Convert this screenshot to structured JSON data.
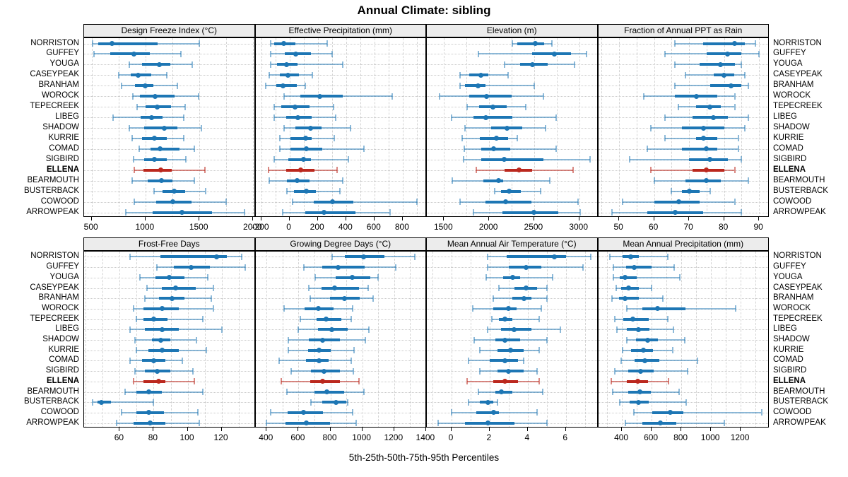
{
  "title": "Annual Climate: sibling",
  "caption": "5th-25th-50th-75th-95th Percentiles",
  "stations": [
    "NORRISTON",
    "GUFFEY",
    "YOUGA",
    "CASEYPEAK",
    "BRANHAM",
    "WOROCK",
    "TEPECREEK",
    "LIBEG",
    "SHADOW",
    "KURRIE",
    "COMAD",
    "SIGBIRD",
    "ELLENA",
    "BEARMOUTH",
    "BUSTERBACK",
    "COWOOD",
    "ARROWPEAK"
  ],
  "highlight_station": "ELLENA",
  "colors": {
    "series": "#1d76b4",
    "series_light": "rgba(29,118,180,0.5)",
    "highlight": "#bb281e",
    "highlight_light": "rgba(187,40,30,0.55)",
    "strip_bg": "#ececec",
    "panel_border": "#000000",
    "grid": "#c9c9c9"
  },
  "chart_data": {
    "type": "percentile-dotplot",
    "percentiles": [
      5,
      25,
      50,
      75,
      95
    ],
    "grid": "on",
    "panels": [
      {
        "title": "Design Freeze Index (°C)",
        "xlim": [
          430,
          2020
        ],
        "ticks": [
          500,
          1000,
          1500,
          2000
        ],
        "grid_step": 250,
        "values": [
          [
            510,
            560,
            690,
            1110,
            1500
          ],
          [
            520,
            670,
            890,
            1040,
            1330
          ],
          [
            850,
            970,
            1130,
            1230,
            1430
          ],
          [
            750,
            865,
            930,
            1055,
            1200
          ],
          [
            775,
            900,
            995,
            1075,
            1295
          ],
          [
            880,
            950,
            1090,
            1270,
            1490
          ],
          [
            920,
            1000,
            1110,
            1240,
            1370
          ],
          [
            700,
            955,
            1055,
            1155,
            1355
          ],
          [
            850,
            990,
            1175,
            1295,
            1515
          ],
          [
            875,
            965,
            1085,
            1195,
            1355
          ],
          [
            940,
            1045,
            1135,
            1315,
            1450
          ],
          [
            890,
            990,
            1085,
            1195,
            1375
          ],
          [
            895,
            980,
            1140,
            1240,
            1550
          ],
          [
            875,
            1020,
            1150,
            1250,
            1450
          ],
          [
            1080,
            1155,
            1265,
            1370,
            1555
          ],
          [
            895,
            1100,
            1250,
            1425,
            1745
          ],
          [
            815,
            1065,
            1335,
            1615,
            1920
          ]
        ]
      },
      {
        "title": "Effective Precipitation (mm)",
        "xlim": [
          -240,
          970
        ],
        "ticks": [
          -200,
          0,
          200,
          400,
          600,
          800
        ],
        "grid_step": 100,
        "values": [
          [
            -135,
            -110,
            -40,
            40,
            265
          ],
          [
            -135,
            -33,
            42,
            150,
            303
          ],
          [
            -133,
            -90,
            -22,
            58,
            375
          ],
          [
            -142,
            -67,
            -13,
            67,
            163
          ],
          [
            -170,
            -92,
            -45,
            50,
            113
          ],
          [
            -37,
            75,
            213,
            375,
            725
          ],
          [
            -108,
            -58,
            38,
            142,
            313
          ],
          [
            -108,
            -25,
            58,
            158,
            325
          ],
          [
            -37,
            42,
            147,
            225,
            433
          ],
          [
            -67,
            8,
            113,
            158,
            317
          ],
          [
            -70,
            8,
            117,
            233,
            525
          ],
          [
            -108,
            -8,
            97,
            150,
            417
          ],
          [
            -147,
            -25,
            80,
            175,
            338
          ],
          [
            -142,
            -20,
            55,
            142,
            375
          ],
          [
            -20,
            33,
            117,
            187,
            358
          ],
          [
            20,
            170,
            303,
            453,
            900
          ],
          [
            -50,
            113,
            242,
            467,
            708
          ]
        ]
      },
      {
        "title": "Elevation (m)",
        "xlim": [
          1310,
          3210
        ],
        "ticks": [
          1500,
          2000,
          2500,
          3000
        ],
        "grid_step": 250,
        "values": [
          [
            2260,
            2310,
            2510,
            2610,
            2700
          ],
          [
            1885,
            2480,
            2725,
            2910,
            3080
          ],
          [
            2175,
            2340,
            2480,
            2650,
            2945
          ],
          [
            1680,
            1780,
            1910,
            1990,
            2210
          ],
          [
            1675,
            1730,
            1875,
            1960,
            2500
          ],
          [
            1450,
            1780,
            1970,
            2250,
            2600
          ],
          [
            1760,
            1890,
            2045,
            2195,
            2410
          ],
          [
            1580,
            1830,
            1960,
            2260,
            2740
          ],
          [
            1735,
            2025,
            2195,
            2365,
            2625
          ],
          [
            1700,
            1895,
            2080,
            2210,
            2310
          ],
          [
            1725,
            1910,
            2050,
            2235,
            2740
          ],
          [
            1720,
            1910,
            2170,
            2600,
            3120
          ],
          [
            1855,
            2170,
            2335,
            2480,
            2930
          ],
          [
            1595,
            1935,
            2105,
            2160,
            2675
          ],
          [
            2065,
            2130,
            2220,
            2350,
            2570
          ],
          [
            1680,
            1960,
            2185,
            2470,
            2990
          ],
          [
            1825,
            2150,
            2500,
            2770,
            3010
          ]
        ]
      },
      {
        "title": "Fraction of Annual PPT as Rain",
        "xlim": [
          44,
          93
        ],
        "ticks": [
          50,
          60,
          70,
          80,
          90
        ],
        "grid_step": 5,
        "values": [
          [
            66,
            74,
            83,
            86,
            89
          ],
          [
            63,
            75,
            81,
            85,
            90
          ],
          [
            66,
            73,
            79,
            83,
            85
          ],
          [
            69,
            77,
            80,
            83,
            86
          ],
          [
            66,
            76,
            82,
            85,
            87
          ],
          [
            57,
            66,
            72,
            78,
            83
          ],
          [
            67,
            72,
            76,
            79,
            83
          ],
          [
            63,
            71,
            77,
            81,
            87
          ],
          [
            59,
            68,
            74,
            80,
            86
          ],
          [
            63,
            72,
            74,
            78,
            84
          ],
          [
            58,
            68,
            75,
            78,
            84
          ],
          [
            53,
            70,
            76,
            81,
            85
          ],
          [
            59,
            71,
            75,
            80,
            83
          ],
          [
            60,
            69,
            75,
            79,
            87
          ],
          [
            65,
            68,
            70,
            73,
            76
          ],
          [
            51,
            60,
            67,
            73,
            83
          ],
          [
            48,
            58,
            66,
            74,
            85
          ]
        ]
      },
      {
        "title": "Frost-Free Days",
        "xlim": [
          39,
          140
        ],
        "ticks": [
          60,
          80,
          100,
          120
        ],
        "grid_step": 10,
        "values": [
          [
            66,
            84,
            117,
            123,
            132
          ],
          [
            82,
            92,
            102,
            113,
            134
          ],
          [
            72,
            81,
            89,
            98,
            112
          ],
          [
            76,
            85,
            93,
            105,
            115
          ],
          [
            75,
            83,
            91,
            98,
            114
          ],
          [
            68,
            74,
            85,
            95,
            115
          ],
          [
            70,
            74,
            80,
            88,
            109
          ],
          [
            66,
            75,
            85,
            95,
            120
          ],
          [
            69,
            79,
            84,
            90,
            105
          ],
          [
            70,
            77,
            85,
            95,
            111
          ],
          [
            66,
            73,
            80,
            87,
            97
          ],
          [
            69,
            75,
            82,
            90,
            103
          ],
          [
            68,
            74,
            83,
            87,
            104
          ],
          [
            63,
            70,
            77,
            85,
            109
          ],
          [
            44,
            47,
            49,
            55,
            80
          ],
          [
            61,
            70,
            77,
            86,
            106
          ],
          [
            58,
            68,
            78,
            87,
            107
          ]
        ]
      },
      {
        "title": "Growing Degree Days (°C)",
        "xlim": [
          330,
          1405
        ],
        "ticks": [
          400,
          600,
          800,
          1000,
          1200,
          1400
        ],
        "grid_step": 100,
        "values": [
          [
            810,
            890,
            1010,
            1140,
            1330
          ],
          [
            633,
            750,
            850,
            1015,
            1210
          ],
          [
            705,
            833,
            935,
            1050,
            1100
          ],
          [
            665,
            745,
            825,
            980,
            1035
          ],
          [
            673,
            797,
            890,
            986,
            1066
          ],
          [
            510,
            637,
            724,
            822,
            940
          ],
          [
            612,
            714,
            775,
            870,
            930
          ],
          [
            600,
            720,
            810,
            906,
            1040
          ],
          [
            535,
            666,
            750,
            862,
            1020
          ],
          [
            535,
            662,
            730,
            804,
            950
          ],
          [
            480,
            647,
            730,
            790,
            930
          ],
          [
            555,
            676,
            758,
            860,
            945
          ],
          [
            490,
            673,
            753,
            860,
            980
          ],
          [
            525,
            700,
            778,
            884,
            1010
          ],
          [
            676,
            749,
            836,
            898,
            910
          ],
          [
            423,
            531,
            633,
            753,
            938
          ],
          [
            400,
            520,
            647,
            797,
            960
          ]
        ]
      },
      {
        "title": "Mean Annual Air Temperature (°C)",
        "xlim": [
          -1.3,
          7.7
        ],
        "ticks": [
          0,
          2,
          4,
          6
        ],
        "grid_step": 1,
        "values": [
          [
            1.9,
            2.9,
            5.4,
            6.0,
            7.3
          ],
          [
            1.9,
            3.0,
            3.9,
            4.7,
            6.9
          ],
          [
            1.8,
            2.7,
            3.2,
            3.6,
            5.3
          ],
          [
            2.5,
            3.3,
            3.9,
            4.5,
            5.0
          ],
          [
            2.2,
            3.2,
            3.8,
            4.2,
            5.0
          ],
          [
            1.1,
            2.2,
            3.0,
            3.4,
            4.7
          ],
          [
            2.1,
            2.5,
            2.8,
            3.2,
            4.6
          ],
          [
            1.9,
            2.6,
            3.3,
            4.2,
            5.7
          ],
          [
            1.2,
            2.3,
            2.8,
            3.6,
            5.0
          ],
          [
            1.5,
            2.4,
            3.1,
            3.8,
            4.6
          ],
          [
            0.9,
            2.0,
            2.8,
            3.5,
            3.8
          ],
          [
            1.5,
            2.4,
            3.0,
            3.8,
            4.5
          ],
          [
            0.8,
            2.2,
            2.8,
            3.5,
            4.6
          ],
          [
            1.4,
            2.3,
            2.6,
            3.2,
            4.8
          ],
          [
            0.9,
            1.5,
            1.9,
            2.2,
            2.4
          ],
          [
            0.0,
            1.3,
            2.2,
            2.5,
            4.5
          ],
          [
            -0.7,
            0.7,
            1.9,
            3.3,
            5.0
          ]
        ]
      },
      {
        "title": "Mean Annual Precipitation (mm)",
        "xlim": [
          240,
          1395
        ],
        "ticks": [
          400,
          600,
          800,
          1000,
          1200
        ],
        "grid_step": 100,
        "values": [
          [
            320,
            406,
            459,
            514,
            708
          ],
          [
            340,
            427,
            483,
            600,
            750
          ],
          [
            340,
            387,
            422,
            502,
            790
          ],
          [
            359,
            395,
            443,
            514,
            597
          ],
          [
            332,
            379,
            422,
            514,
            676
          ],
          [
            432,
            538,
            641,
            829,
            1168
          ],
          [
            352,
            411,
            475,
            581,
            708
          ],
          [
            368,
            432,
            511,
            586,
            749
          ],
          [
            432,
            495,
            575,
            644,
            824
          ],
          [
            406,
            463,
            546,
            610,
            740
          ],
          [
            395,
            486,
            554,
            654,
            908
          ],
          [
            352,
            443,
            527,
            613,
            844
          ],
          [
            327,
            432,
            506,
            575,
            713
          ],
          [
            337,
            443,
            522,
            597,
            787
          ],
          [
            384,
            451,
            511,
            581,
            835
          ],
          [
            479,
            602,
            724,
            813,
            1340
          ],
          [
            422,
            538,
            660,
            768,
            1089
          ]
        ]
      }
    ]
  }
}
